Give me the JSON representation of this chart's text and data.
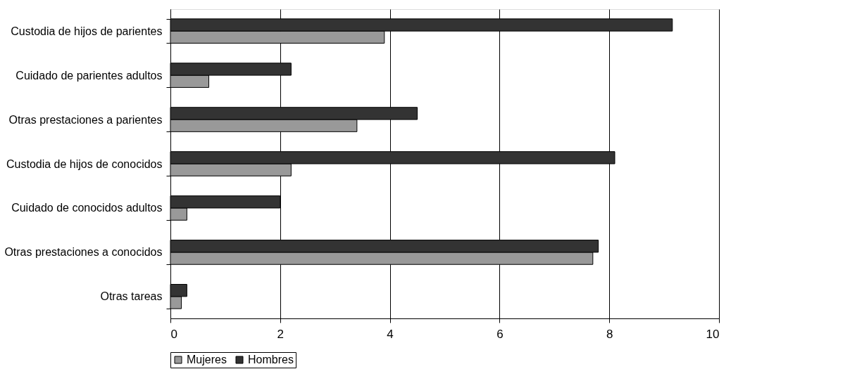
{
  "chart_data": {
    "type": "bar",
    "orientation": "horizontal",
    "categories": [
      "Custodia de hijos de parientes",
      "Cuidado de parientes adultos",
      "Otras prestaciones a parientes",
      "Custodia de hijos de conocidos",
      "Cuidado de conocidos adultos",
      "Otras prestaciones a conocidos",
      "Otras tareas"
    ],
    "series": [
      {
        "name": "Mujeres",
        "color": "#999999",
        "values": [
          3.9,
          0.7,
          3.4,
          2.2,
          0.3,
          7.7,
          0.2
        ]
      },
      {
        "name": "Hombres",
        "color": "#333333",
        "values": [
          9.15,
          2.2,
          4.5,
          8.1,
          2.0,
          7.8,
          0.3
        ]
      }
    ],
    "xlim": [
      0,
      10
    ],
    "xticks": [
      0,
      2,
      4,
      6,
      8,
      10
    ],
    "grid": "x",
    "legend": "bottom"
  }
}
